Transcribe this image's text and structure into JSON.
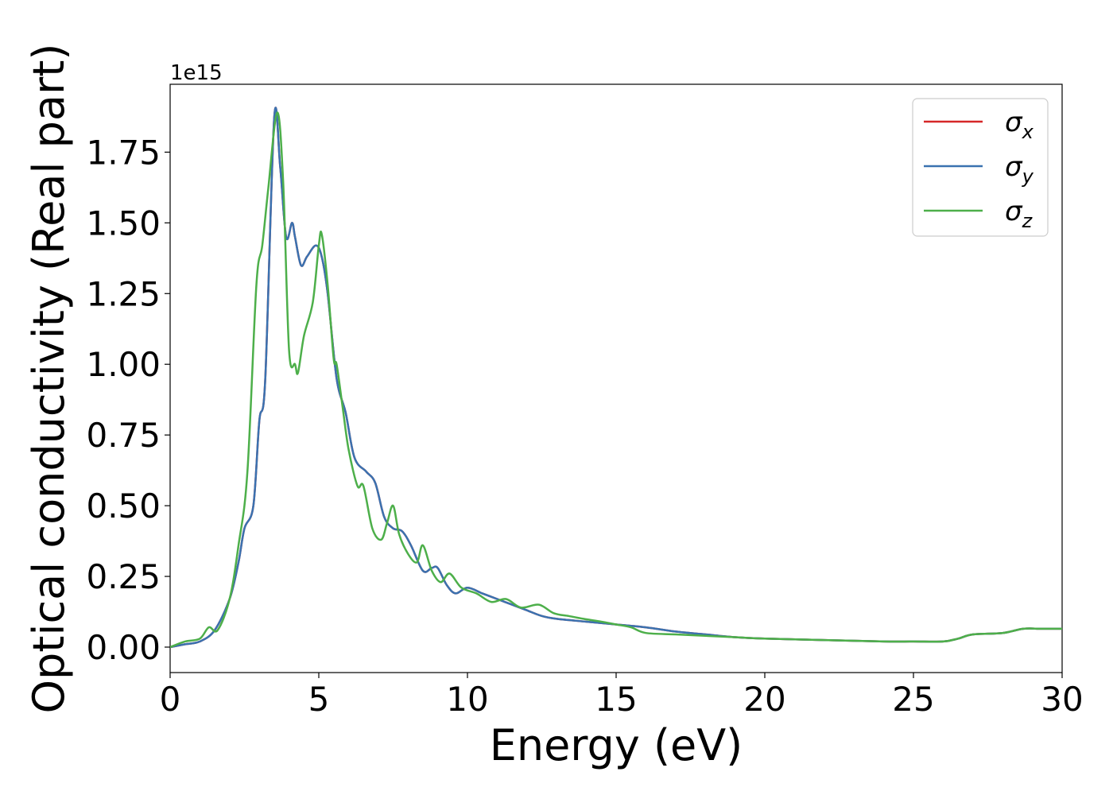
{
  "chart_data": {
    "type": "line",
    "xlabel": "Energy (eV)",
    "ylabel": "Optical conductivity (Real part)",
    "offset_label": "1e15",
    "xlim": [
      0,
      30
    ],
    "ylim": [
      -0.09,
      1.99
    ],
    "x_ticks": [
      0,
      5,
      10,
      15,
      20,
      25,
      30
    ],
    "x_tick_labels": [
      "0",
      "5",
      "10",
      "15",
      "20",
      "25",
      "30"
    ],
    "y_ticks": [
      0,
      0.25,
      0.5,
      0.75,
      1.0,
      1.25,
      1.5,
      1.75
    ],
    "y_tick_labels": [
      "0.00",
      "0.25",
      "0.50",
      "0.75",
      "1.00",
      "1.25",
      "1.50",
      "1.75"
    ],
    "grid": false,
    "legend_position": "top-right",
    "series": [
      {
        "name": "σx",
        "legend_base": "σ",
        "legend_sub": "x",
        "color": "#d62728",
        "x": [
          0,
          0.5,
          1.0,
          1.5,
          2.0,
          2.3,
          2.5,
          2.8,
          3.0,
          3.2,
          3.5,
          3.7,
          3.9,
          4.1,
          4.2,
          4.4,
          4.6,
          4.9,
          5.1,
          5.3,
          5.6,
          5.9,
          6.2,
          6.6,
          6.9,
          7.2,
          7.5,
          7.8,
          8.1,
          8.5,
          8.8,
          9.0,
          9.3,
          9.6,
          10.0,
          10.5,
          11.0,
          11.5,
          12.0,
          12.5,
          13.0,
          14.0,
          15.0,
          16.0,
          17.0,
          18.0,
          19.0,
          20.0,
          22.0,
          24.0,
          25.0,
          26.0,
          26.5,
          27.0,
          28.0,
          28.7,
          29.3,
          30.0
        ],
        "y": [
          0,
          0.01,
          0.02,
          0.06,
          0.17,
          0.3,
          0.42,
          0.5,
          0.8,
          0.95,
          1.87,
          1.7,
          1.45,
          1.5,
          1.45,
          1.35,
          1.38,
          1.42,
          1.38,
          1.25,
          0.95,
          0.83,
          0.67,
          0.62,
          0.58,
          0.46,
          0.42,
          0.41,
          0.36,
          0.27,
          0.28,
          0.28,
          0.22,
          0.19,
          0.21,
          0.19,
          0.17,
          0.15,
          0.13,
          0.11,
          0.1,
          0.09,
          0.08,
          0.07,
          0.055,
          0.045,
          0.035,
          0.03,
          0.025,
          0.02,
          0.02,
          0.02,
          0.03,
          0.045,
          0.05,
          0.065,
          0.065,
          0.065
        ]
      },
      {
        "name": "σy",
        "legend_base": "σ",
        "legend_sub": "y",
        "color": "#3a72b0",
        "x": [
          0,
          0.5,
          1.0,
          1.5,
          2.0,
          2.3,
          2.5,
          2.8,
          3.0,
          3.2,
          3.5,
          3.7,
          3.9,
          4.1,
          4.2,
          4.4,
          4.6,
          4.9,
          5.1,
          5.3,
          5.6,
          5.9,
          6.2,
          6.6,
          6.9,
          7.2,
          7.5,
          7.8,
          8.1,
          8.5,
          8.8,
          9.0,
          9.3,
          9.6,
          10.0,
          10.5,
          11.0,
          11.5,
          12.0,
          12.5,
          13.0,
          14.0,
          15.0,
          16.0,
          17.0,
          18.0,
          19.0,
          20.0,
          22.0,
          24.0,
          25.0,
          26.0,
          26.5,
          27.0,
          28.0,
          28.7,
          29.3,
          30.0
        ],
        "y": [
          0,
          0.01,
          0.02,
          0.06,
          0.17,
          0.3,
          0.42,
          0.5,
          0.8,
          0.95,
          1.87,
          1.7,
          1.45,
          1.5,
          1.45,
          1.35,
          1.38,
          1.42,
          1.38,
          1.25,
          0.95,
          0.83,
          0.67,
          0.62,
          0.58,
          0.46,
          0.42,
          0.41,
          0.36,
          0.27,
          0.28,
          0.28,
          0.22,
          0.19,
          0.21,
          0.19,
          0.17,
          0.15,
          0.13,
          0.11,
          0.1,
          0.09,
          0.08,
          0.07,
          0.055,
          0.045,
          0.035,
          0.03,
          0.025,
          0.02,
          0.02,
          0.02,
          0.03,
          0.045,
          0.05,
          0.065,
          0.065,
          0.065
        ]
      },
      {
        "name": "σz",
        "legend_base": "σ",
        "legend_sub": "z",
        "color": "#4daf4a",
        "x": [
          0,
          0.5,
          1.0,
          1.3,
          1.6,
          2.0,
          2.3,
          2.6,
          2.9,
          3.1,
          3.3,
          3.6,
          3.8,
          4.0,
          4.2,
          4.3,
          4.5,
          4.8,
          5.0,
          5.1,
          5.3,
          5.5,
          5.6,
          5.8,
          6.0,
          6.3,
          6.5,
          6.8,
          7.1,
          7.3,
          7.5,
          7.7,
          8.0,
          8.3,
          8.5,
          8.8,
          9.1,
          9.4,
          9.8,
          10.3,
          10.8,
          11.3,
          11.8,
          12.4,
          12.9,
          13.4,
          13.9,
          14.5,
          15.0,
          15.5,
          16.0,
          17.0,
          18.0,
          19.0,
          20.0,
          22.0,
          24.0,
          25.0,
          26.0,
          26.5,
          27.0,
          28.0,
          28.7,
          29.3,
          30.0
        ],
        "y": [
          0,
          0.02,
          0.03,
          0.07,
          0.06,
          0.17,
          0.36,
          0.62,
          1.28,
          1.42,
          1.62,
          1.89,
          1.65,
          1.05,
          1.0,
          0.97,
          1.1,
          1.22,
          1.42,
          1.46,
          1.28,
          1.02,
          1.0,
          0.85,
          0.7,
          0.57,
          0.57,
          0.42,
          0.38,
          0.44,
          0.5,
          0.4,
          0.33,
          0.3,
          0.36,
          0.27,
          0.23,
          0.26,
          0.21,
          0.19,
          0.16,
          0.17,
          0.14,
          0.15,
          0.12,
          0.11,
          0.1,
          0.09,
          0.08,
          0.07,
          0.05,
          0.045,
          0.04,
          0.035,
          0.03,
          0.025,
          0.02,
          0.02,
          0.02,
          0.03,
          0.045,
          0.05,
          0.065,
          0.065,
          0.065
        ]
      }
    ]
  }
}
